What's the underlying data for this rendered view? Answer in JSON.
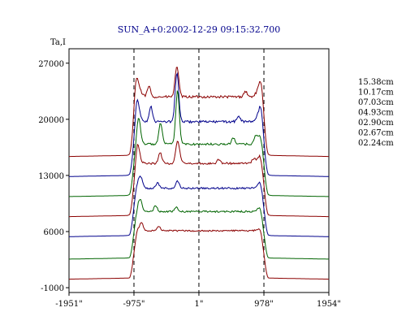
{
  "chart_data": {
    "type": "line",
    "title": "SUN_A+0:2002-12-29 09:15:32.700",
    "ylabel": "Ta,I",
    "xlabel": "",
    "xlim": [
      -1951,
      1954
    ],
    "ylim": [
      -1600,
      28800
    ],
    "x_ticks": [
      {
        "value": -1951,
        "label": "-1951\""
      },
      {
        "value": -975,
        "label": "-975\""
      },
      {
        "value": 1,
        "label": "1\""
      },
      {
        "value": 978,
        "label": "978\""
      },
      {
        "value": 1954,
        "label": "1954\""
      }
    ],
    "y_ticks": [
      {
        "value": 27000,
        "label": "27000"
      },
      {
        "value": 20000,
        "label": "20000"
      },
      {
        "value": 13000,
        "label": "13000"
      },
      {
        "value": 6000,
        "label": "6000"
      },
      {
        "value": -1000,
        "label": "-1000"
      }
    ],
    "dashed_vlines": [
      -975,
      1,
      978
    ],
    "grid": false,
    "legend_position": "right",
    "series": [
      {
        "name": "15.38cm",
        "color": "#8b0000",
        "baseline": 15500,
        "disk": 22800,
        "limb_height": 1700,
        "jitter": 300,
        "peaks": [
          {
            "x": -950,
            "h": 1800
          },
          {
            "x": -750,
            "h": 1300
          },
          {
            "x": -340,
            "h": 2000
          },
          {
            "x": -320,
            "h": 2200
          },
          {
            "x": 700,
            "h": 700
          },
          {
            "x": 950,
            "h": 900
          }
        ]
      },
      {
        "name": "10.17cm",
        "color": "#00008b",
        "baseline": 13000,
        "disk": 19700,
        "limb_height": 1500,
        "jitter": 300,
        "peaks": [
          {
            "x": -930,
            "h": 1700
          },
          {
            "x": -720,
            "h": 1900
          },
          {
            "x": -340,
            "h": 3000
          },
          {
            "x": -320,
            "h": 3600
          },
          {
            "x": 600,
            "h": 700
          },
          {
            "x": 940,
            "h": 900
          }
        ]
      },
      {
        "name": "07.03cm",
        "color": "#006400",
        "baseline": 10500,
        "disk": 16900,
        "limb_height": 1300,
        "jitter": 260,
        "peaks": [
          {
            "x": -900,
            "h": 2200
          },
          {
            "x": -580,
            "h": 2100
          },
          {
            "x": -330,
            "h": 3600
          },
          {
            "x": -310,
            "h": 3600
          },
          {
            "x": -560,
            "h": 600
          },
          {
            "x": 520,
            "h": 800
          },
          {
            "x": 850,
            "h": 700
          }
        ]
      },
      {
        "name": "04.93cm",
        "color": "#8b0000",
        "baseline": 8000,
        "disk": 14500,
        "limb_height": 1100,
        "jitter": 260,
        "peaks": [
          {
            "x": -920,
            "h": 1500
          },
          {
            "x": -580,
            "h": 1300
          },
          {
            "x": -330,
            "h": 1800
          },
          {
            "x": -300,
            "h": 1500
          },
          {
            "x": 300,
            "h": 500
          },
          {
            "x": 820,
            "h": 500
          }
        ]
      },
      {
        "name": "02.90cm",
        "color": "#00008b",
        "baseline": 5500,
        "disk": 11400,
        "limb_height": 900,
        "jitter": 220,
        "peaks": [
          {
            "x": -870,
            "h": 1100
          },
          {
            "x": -620,
            "h": 700
          },
          {
            "x": -320,
            "h": 900
          }
        ]
      },
      {
        "name": "02.67cm",
        "color": "#006400",
        "baseline": 2700,
        "disk": 8500,
        "limb_height": 500,
        "jitter": 220,
        "peaks": [
          {
            "x": -880,
            "h": 1300
          },
          {
            "x": -650,
            "h": 700
          },
          {
            "x": -340,
            "h": 500
          }
        ]
      },
      {
        "name": "02.24cm",
        "color": "#8b0000",
        "baseline": 200,
        "disk": 6100,
        "limb_height": 300,
        "jitter": 180,
        "peaks": [
          {
            "x": -860,
            "h": 900
          },
          {
            "x": -600,
            "h": 500
          }
        ]
      }
    ]
  }
}
